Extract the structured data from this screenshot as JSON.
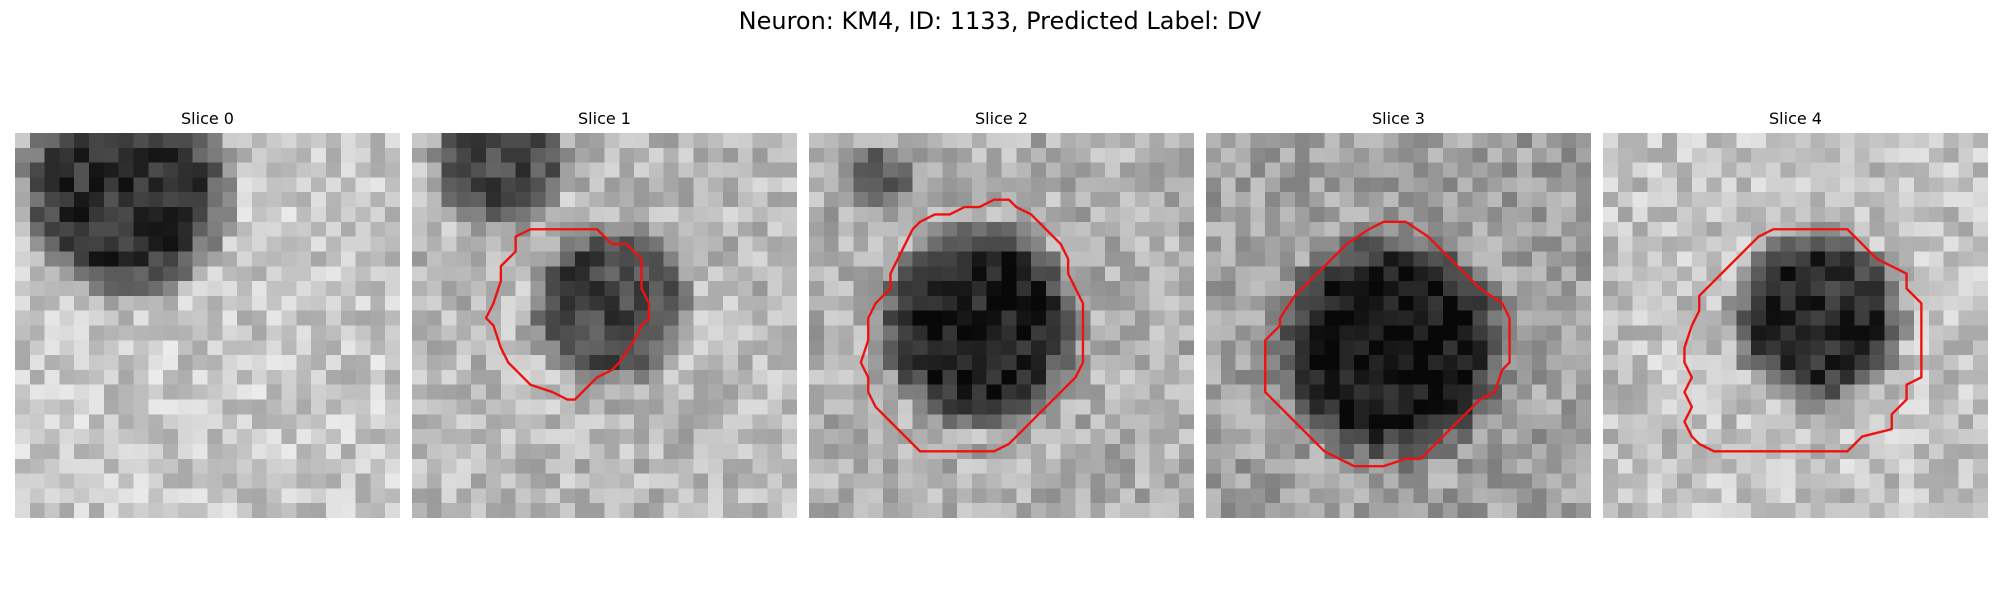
{
  "figure": {
    "title": "Neuron: KM4, ID: 1133, Predicted Label: DV"
  },
  "contour_color": "#ee1111",
  "slices": [
    {
      "title": "Slice 0",
      "has_contour": false,
      "contour": []
    },
    {
      "title": "Slice 1",
      "has_contour": true,
      "contour": [
        [
          10.5,
          6.5
        ],
        [
          12.5,
          6.5
        ],
        [
          13.5,
          7.5
        ],
        [
          14.5,
          7.5
        ],
        [
          15.5,
          8.5
        ],
        [
          15.5,
          10.5
        ],
        [
          16,
          11.5
        ],
        [
          16,
          12.5
        ],
        [
          15.5,
          13
        ],
        [
          15,
          14
        ],
        [
          14,
          15.5
        ],
        [
          13.5,
          16
        ],
        [
          12.5,
          16.5
        ],
        [
          11.5,
          17.5
        ],
        [
          11,
          18
        ],
        [
          10.5,
          18
        ],
        [
          9.5,
          17.5
        ],
        [
          8,
          17
        ],
        [
          7.5,
          16.5
        ],
        [
          6.5,
          15.5
        ],
        [
          6,
          14.5
        ],
        [
          5.5,
          13
        ],
        [
          5,
          12.5
        ],
        [
          5.5,
          11.5
        ],
        [
          6,
          10
        ],
        [
          6,
          9
        ],
        [
          7,
          8
        ],
        [
          7,
          7
        ],
        [
          8,
          6.5
        ],
        [
          9.5,
          6.5
        ]
      ]
    },
    {
      "title": "Slice 2",
      "has_contour": true,
      "contour": [
        [
          12.5,
          4.5
        ],
        [
          13.5,
          4.5
        ],
        [
          14,
          5
        ],
        [
          15,
          5.5
        ],
        [
          16,
          6.5
        ],
        [
          17,
          7.5
        ],
        [
          17.5,
          8.5
        ],
        [
          17.5,
          9.5
        ],
        [
          18,
          10.5
        ],
        [
          18.5,
          11.5
        ],
        [
          18.5,
          15.5
        ],
        [
          18,
          16.5
        ],
        [
          17.5,
          17
        ],
        [
          16.5,
          18
        ],
        [
          15.5,
          19
        ],
        [
          14.5,
          20
        ],
        [
          13.5,
          21
        ],
        [
          12.5,
          21.5
        ],
        [
          7.5,
          21.5
        ],
        [
          6.5,
          20.5
        ],
        [
          5.5,
          19.5
        ],
        [
          4.5,
          18.5
        ],
        [
          4,
          17.5
        ],
        [
          4,
          16.5
        ],
        [
          3.5,
          15.5
        ],
        [
          4,
          14
        ],
        [
          4,
          12.5
        ],
        [
          4.5,
          11.5
        ],
        [
          5.5,
          10.5
        ],
        [
          5.5,
          9.5
        ],
        [
          6,
          8.5
        ],
        [
          6.5,
          7.5
        ],
        [
          7,
          6.5
        ],
        [
          7.5,
          6
        ],
        [
          8.5,
          5.5
        ],
        [
          9.5,
          5.5
        ],
        [
          10.5,
          5
        ],
        [
          11.5,
          5
        ]
      ]
    },
    {
      "title": "Slice 3",
      "has_contour": true,
      "contour": [
        [
          12,
          6
        ],
        [
          13.5,
          6
        ],
        [
          15,
          7
        ],
        [
          16.5,
          8.5
        ],
        [
          17.5,
          9.5
        ],
        [
          18.5,
          10.5
        ],
        [
          20,
          11.5
        ],
        [
          20.5,
          12.5
        ],
        [
          20.5,
          15.5
        ],
        [
          20,
          16
        ],
        [
          19.5,
          17.5
        ],
        [
          18.5,
          18
        ],
        [
          17.5,
          19
        ],
        [
          16.5,
          20
        ],
        [
          15.5,
          21
        ],
        [
          14.5,
          22
        ],
        [
          13.5,
          22
        ],
        [
          12,
          22.5
        ],
        [
          10,
          22.5
        ],
        [
          8,
          21.5
        ],
        [
          7,
          20.5
        ],
        [
          6,
          19.5
        ],
        [
          5,
          18.5
        ],
        [
          4,
          17.5
        ],
        [
          4,
          14
        ],
        [
          5,
          13
        ],
        [
          5,
          12.5
        ],
        [
          6,
          11
        ],
        [
          7,
          10
        ],
        [
          8,
          9
        ],
        [
          9.5,
          7.5
        ],
        [
          11,
          6.5
        ]
      ]
    },
    {
      "title": "Slice 4",
      "has_contour": true,
      "contour": [
        [
          11.5,
          6.5
        ],
        [
          16.5,
          6.5
        ],
        [
          17.5,
          7.5
        ],
        [
          18.5,
          8.5
        ],
        [
          20.5,
          9.5
        ],
        [
          20.5,
          10.5
        ],
        [
          21.5,
          11.5
        ],
        [
          21.5,
          16.5
        ],
        [
          20.5,
          17
        ],
        [
          20.5,
          18
        ],
        [
          19.5,
          19
        ],
        [
          19.5,
          20
        ],
        [
          17.5,
          20.5
        ],
        [
          16.5,
          21.5
        ],
        [
          7.5,
          21.5
        ],
        [
          6.5,
          21
        ],
        [
          6,
          20.5
        ],
        [
          5.5,
          19.5
        ],
        [
          6,
          18.5
        ],
        [
          5.5,
          17.5
        ],
        [
          6,
          16.5
        ],
        [
          5.5,
          15.5
        ],
        [
          5.5,
          14.5
        ],
        [
          6,
          13
        ],
        [
          6.5,
          12
        ],
        [
          6.5,
          11
        ],
        [
          7.5,
          10
        ],
        [
          8.5,
          9
        ],
        [
          9.5,
          8
        ],
        [
          10.5,
          7
        ]
      ]
    }
  ]
}
